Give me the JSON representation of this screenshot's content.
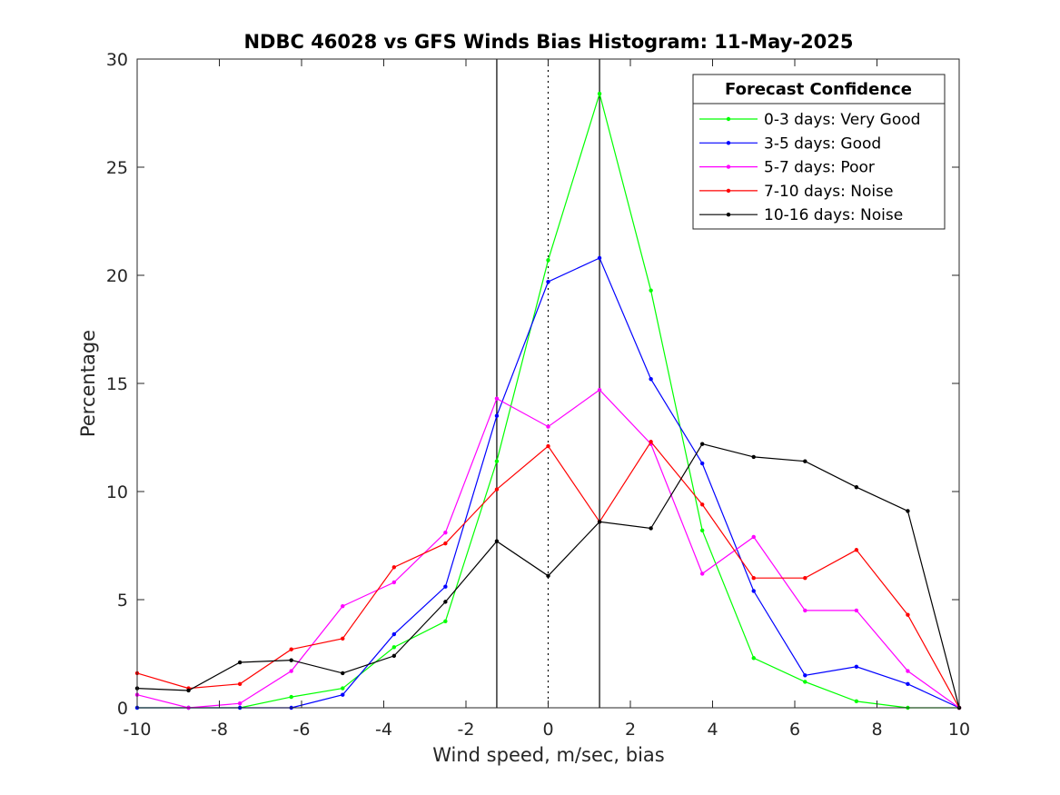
{
  "chart_data": {
    "type": "line",
    "title": "NDBC 46028 vs GFS Winds Bias Histogram: 11-May-2025",
    "xlabel": "Wind speed, m/sec, bias",
    "ylabel": "Percentage",
    "xlim": [
      -10,
      10
    ],
    "ylim": [
      0,
      30
    ],
    "xticks": [
      -10,
      -8,
      -6,
      -4,
      -2,
      0,
      2,
      4,
      6,
      8,
      10
    ],
    "yticks": [
      0,
      5,
      10,
      15,
      20,
      25,
      30
    ],
    "grid": false,
    "legend_title": "Forecast Confidence",
    "legend_position": "top-right",
    "reference_lines": [
      {
        "x": -1.25,
        "style": "solid"
      },
      {
        "x": 0,
        "style": "dotted"
      },
      {
        "x": 1.25,
        "style": "solid"
      }
    ],
    "x": [
      -10,
      -8.75,
      -7.5,
      -6.25,
      -5,
      -3.75,
      -2.5,
      -1.25,
      0,
      1.25,
      2.5,
      3.75,
      5,
      6.25,
      7.5,
      8.75,
      10
    ],
    "series": [
      {
        "name": "0-3 days: Very Good",
        "color": "#00ff00",
        "values": [
          0,
          0,
          0,
          0.5,
          0.9,
          2.8,
          4.0,
          11.4,
          20.7,
          28.4,
          19.3,
          8.2,
          2.3,
          1.2,
          0.3,
          0,
          0
        ]
      },
      {
        "name": "3-5 days: Good",
        "color": "#0000ff",
        "values": [
          0,
          0,
          0,
          0,
          0.6,
          3.4,
          5.6,
          13.5,
          19.7,
          20.8,
          15.2,
          11.3,
          5.4,
          1.5,
          1.9,
          1.1,
          0
        ]
      },
      {
        "name": "5-7 days: Poor",
        "color": "#ff00ff",
        "values": [
          0.6,
          0,
          0.2,
          1.7,
          4.7,
          5.8,
          8.1,
          14.3,
          13.0,
          14.7,
          12.2,
          6.2,
          7.9,
          4.5,
          4.5,
          1.7,
          0
        ]
      },
      {
        "name": "7-10 days: Noise",
        "color": "#ff0000",
        "values": [
          1.6,
          0.9,
          1.1,
          2.7,
          3.2,
          6.5,
          7.6,
          10.1,
          12.1,
          8.6,
          12.3,
          9.4,
          6.0,
          6.0,
          7.3,
          4.3,
          0
        ]
      },
      {
        "name": "10-16 days: Noise",
        "color": "#000000",
        "values": [
          0.9,
          0.8,
          2.1,
          2.2,
          1.6,
          2.4,
          4.9,
          7.7,
          6.1,
          8.6,
          8.3,
          12.2,
          11.6,
          11.4,
          10.2,
          9.1,
          0
        ]
      }
    ]
  }
}
